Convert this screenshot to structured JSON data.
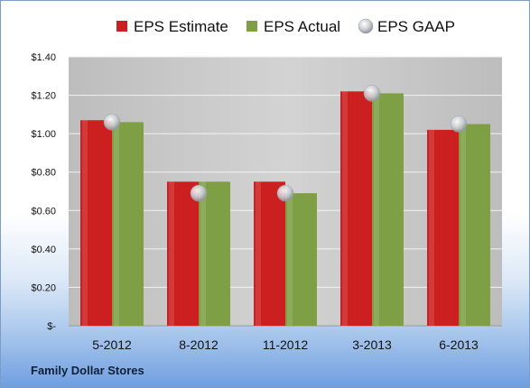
{
  "chart_data": {
    "type": "bar",
    "categories": [
      "5-2012",
      "8-2012",
      "11-2012",
      "3-2013",
      "6-2013"
    ],
    "series": [
      {
        "name": "EPS Estimate",
        "type": "bar",
        "color": "#cc1f1f",
        "values": [
          1.07,
          0.75,
          0.75,
          1.22,
          1.02
        ]
      },
      {
        "name": "EPS Actual",
        "type": "bar",
        "color": "#7f9f45",
        "values": [
          1.06,
          0.75,
          0.69,
          1.21,
          1.05
        ]
      },
      {
        "name": "EPS GAAP",
        "type": "scatter",
        "color": "#c9ccd2",
        "values": [
          1.06,
          0.69,
          0.69,
          1.21,
          1.05
        ]
      }
    ],
    "yticks": [
      "$-",
      "$0.20",
      "$0.40",
      "$0.60",
      "$0.80",
      "$1.00",
      "$1.20",
      "$1.40"
    ],
    "ylim": [
      0,
      1.4
    ],
    "grid": true,
    "legend_position": "top"
  },
  "footer": {
    "title": "Family Dollar Stores"
  }
}
